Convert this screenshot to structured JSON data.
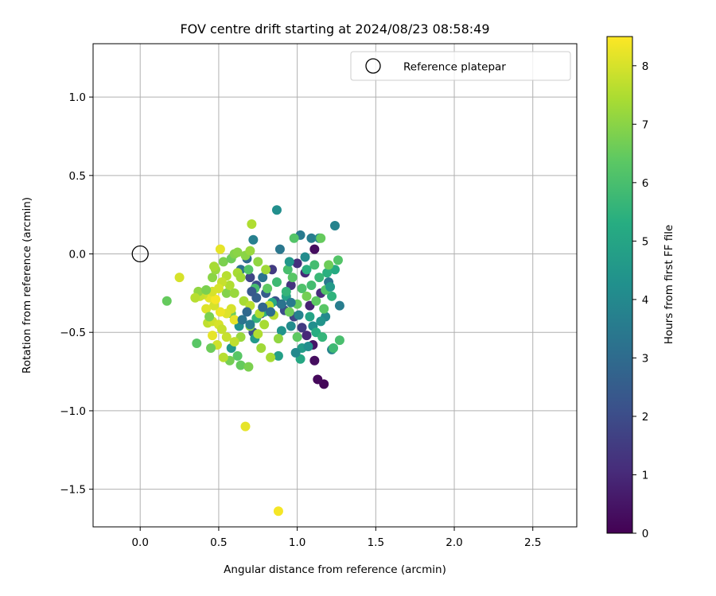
{
  "chart_data": {
    "type": "scatter",
    "title": "FOV centre drift starting at 2024/08/23 08:58:49",
    "xlabel": "Angular distance from reference (arcmin)",
    "ylabel": "Rotation from reference (arcmin)",
    "xlim": [
      -0.3,
      2.78
    ],
    "ylim": [
      -1.74,
      1.34
    ],
    "xticks": [
      0.0,
      0.5,
      1.0,
      1.5,
      2.0,
      2.5
    ],
    "xtick_labels": [
      "0.0",
      "0.5",
      "1.0",
      "1.5",
      "2.0",
      "2.5"
    ],
    "yticks": [
      1.0,
      0.5,
      0.0,
      -0.5,
      -1.0,
      -1.5
    ],
    "ytick_labels": [
      "1.0",
      "0.5",
      "0.0",
      "−0.5",
      "−1.0",
      "−1.5"
    ],
    "grid": true,
    "legend": {
      "placement": "top-right",
      "entries": [
        "Reference platepar"
      ]
    },
    "reference_point": {
      "x": 0.0,
      "y": 0.0
    },
    "colorbar": {
      "label": "Hours from first FF file",
      "range": [
        0,
        8.5
      ],
      "ticks": [
        0,
        1,
        2,
        3,
        4,
        5,
        6,
        7,
        8
      ],
      "tick_labels": [
        "0",
        "1",
        "2",
        "3",
        "4",
        "5",
        "6",
        "7",
        "8"
      ],
      "colormap": "viridis"
    },
    "points": [
      [
        0.88,
        -1.64,
        8.4
      ],
      [
        0.67,
        -1.1,
        8.2
      ],
      [
        1.17,
        -0.83,
        0.1
      ],
      [
        1.13,
        -0.8,
        0.2
      ],
      [
        1.11,
        -0.68,
        0.3
      ],
      [
        1.1,
        -0.58,
        0.5
      ],
      [
        1.06,
        -0.52,
        1.0
      ],
      [
        1.03,
        -0.47,
        1.5
      ],
      [
        0.98,
        -0.4,
        1.8
      ],
      [
        0.92,
        -0.36,
        2.0
      ],
      [
        0.86,
        -0.3,
        2.2
      ],
      [
        0.8,
        -0.25,
        2.5
      ],
      [
        0.74,
        -0.2,
        2.0
      ],
      [
        0.7,
        -0.15,
        1.8
      ],
      [
        0.84,
        -0.1,
        1.5
      ],
      [
        1.0,
        -0.06,
        1.2
      ],
      [
        1.11,
        0.03,
        0.3
      ],
      [
        1.05,
        -0.12,
        1.0
      ],
      [
        0.96,
        -0.2,
        1.3
      ],
      [
        0.9,
        -0.32,
        1.6
      ],
      [
        0.77,
        -0.38,
        1.9
      ],
      [
        0.72,
        -0.5,
        2.1
      ],
      [
        1.08,
        -0.33,
        0.8
      ],
      [
        1.15,
        -0.25,
        1.1
      ],
      [
        0.87,
        0.28,
        4.2
      ],
      [
        1.24,
        0.18,
        3.8
      ],
      [
        1.02,
        0.12,
        3.5
      ],
      [
        1.09,
        0.1,
        3.6
      ],
      [
        1.14,
        0.1,
        3.9
      ],
      [
        0.72,
        0.09,
        3.7
      ],
      [
        0.89,
        0.03,
        3.4
      ],
      [
        0.68,
        -0.03,
        3.0
      ],
      [
        0.64,
        -0.1,
        3.2
      ],
      [
        0.78,
        -0.15,
        3.3
      ],
      [
        1.2,
        -0.18,
        3.4
      ],
      [
        1.27,
        -0.33,
        3.6
      ],
      [
        1.22,
        -0.61,
        3.8
      ],
      [
        1.18,
        -0.4,
        4.0
      ],
      [
        1.1,
        -0.46,
        4.2
      ],
      [
        0.96,
        -0.46,
        4.1
      ],
      [
        0.9,
        -0.49,
        4.4
      ],
      [
        0.63,
        -0.46,
        4.3
      ],
      [
        0.58,
        -0.6,
        4.5
      ],
      [
        0.73,
        -0.54,
        4.6
      ],
      [
        0.88,
        -0.65,
        4.8
      ],
      [
        1.03,
        -0.6,
        4.7
      ],
      [
        1.02,
        -0.67,
        5.1
      ],
      [
        1.08,
        -0.4,
        5.0
      ],
      [
        1.12,
        -0.5,
        5.3
      ],
      [
        1.16,
        -0.53,
        5.6
      ],
      [
        1.23,
        -0.6,
        5.8
      ],
      [
        1.27,
        -0.55,
        6.0
      ],
      [
        1.22,
        -0.27,
        5.5
      ],
      [
        1.24,
        -0.1,
        5.2
      ],
      [
        1.19,
        -0.12,
        5.4
      ],
      [
        1.14,
        -0.15,
        5.7
      ],
      [
        1.09,
        -0.2,
        5.9
      ],
      [
        1.03,
        -0.22,
        6.1
      ],
      [
        0.97,
        -0.15,
        6.3
      ],
      [
        0.94,
        -0.1,
        6.0
      ],
      [
        0.98,
        0.1,
        6.2
      ],
      [
        1.15,
        0.1,
        6.5
      ],
      [
        1.26,
        -0.04,
        6.2
      ],
      [
        1.2,
        -0.07,
        6.6
      ],
      [
        1.17,
        -0.35,
        6.3
      ],
      [
        1.12,
        -0.3,
        6.4
      ],
      [
        1.06,
        -0.27,
        6.7
      ],
      [
        1.0,
        -0.32,
        6.5
      ],
      [
        0.95,
        -0.37,
        6.6
      ],
      [
        1.0,
        -0.53,
        6.4
      ],
      [
        0.93,
        -0.27,
        4.9
      ],
      [
        0.84,
        -0.31,
        5.2
      ],
      [
        0.79,
        -0.37,
        5.4
      ],
      [
        0.74,
        -0.41,
        5.6
      ],
      [
        0.62,
        -0.65,
        6.3
      ],
      [
        0.64,
        -0.71,
        6.5
      ],
      [
        0.69,
        -0.72,
        6.8
      ],
      [
        0.57,
        -0.68,
        6.7
      ],
      [
        0.58,
        -0.38,
        6.6
      ],
      [
        0.55,
        -0.25,
        6.9
      ],
      [
        0.53,
        -0.05,
        6.8
      ],
      [
        0.58,
        -0.03,
        6.6
      ],
      [
        0.6,
        0.0,
        6.9
      ],
      [
        0.67,
        -0.01,
        7.0
      ],
      [
        0.7,
        0.02,
        7.2
      ],
      [
        0.75,
        -0.05,
        7.1
      ],
      [
        0.8,
        -0.1,
        7.3
      ],
      [
        0.62,
        -0.12,
        7.4
      ],
      [
        0.57,
        -0.2,
        7.5
      ],
      [
        0.64,
        -0.15,
        7.3
      ],
      [
        0.6,
        -0.25,
        7.2
      ],
      [
        0.66,
        -0.3,
        7.4
      ],
      [
        0.7,
        -0.33,
        7.6
      ],
      [
        0.76,
        -0.38,
        7.5
      ],
      [
        0.82,
        -0.33,
        7.7
      ],
      [
        0.85,
        -0.39,
        7.6
      ],
      [
        0.79,
        -0.45,
        7.4
      ],
      [
        0.75,
        -0.51,
        7.5
      ],
      [
        0.77,
        -0.6,
        7.3
      ],
      [
        0.83,
        -0.66,
        7.4
      ],
      [
        0.88,
        -0.54,
        7.1
      ],
      [
        0.7,
        -0.46,
        7.0
      ],
      [
        0.64,
        -0.53,
        7.2
      ],
      [
        0.6,
        -0.56,
        7.7
      ],
      [
        0.55,
        -0.53,
        7.8
      ],
      [
        0.53,
        -0.66,
        7.6
      ],
      [
        0.49,
        -0.58,
        7.9
      ],
      [
        0.46,
        -0.52,
        8.2
      ],
      [
        0.43,
        -0.44,
        7.7
      ],
      [
        0.46,
        -0.43,
        7.9
      ],
      [
        0.5,
        -0.45,
        8.0
      ],
      [
        0.52,
        -0.48,
        7.8
      ],
      [
        0.58,
        -0.35,
        8.0
      ],
      [
        0.6,
        -0.42,
        8.2
      ],
      [
        0.55,
        -0.38,
        8.1
      ],
      [
        0.51,
        -0.37,
        8.3
      ],
      [
        0.47,
        -0.33,
        8.0
      ],
      [
        0.42,
        -0.35,
        8.1
      ],
      [
        0.44,
        -0.28,
        8.2
      ],
      [
        0.48,
        -0.29,
        8.4
      ],
      [
        0.46,
        -0.24,
        8.0
      ],
      [
        0.4,
        -0.26,
        7.9
      ],
      [
        0.38,
        -0.27,
        7.8
      ],
      [
        0.37,
        -0.24,
        7.1
      ],
      [
        0.42,
        -0.23,
        6.8
      ],
      [
        0.46,
        -0.15,
        7.0
      ],
      [
        0.48,
        -0.1,
        7.2
      ],
      [
        0.47,
        -0.08,
        7.4
      ],
      [
        0.55,
        -0.14,
        7.6
      ],
      [
        0.52,
        -0.18,
        7.8
      ],
      [
        0.5,
        -0.22,
        8.0
      ],
      [
        0.51,
        0.03,
        8.2
      ],
      [
        0.71,
        0.19,
        7.5
      ],
      [
        0.62,
        0.01,
        7.0
      ],
      [
        0.25,
        -0.15,
        8.0
      ],
      [
        0.17,
        -0.3,
        6.5
      ],
      [
        0.35,
        -0.28,
        7.6
      ],
      [
        0.36,
        -0.57,
        6.3
      ],
      [
        0.45,
        -0.6,
        6.6
      ],
      [
        0.44,
        -0.4,
        6.8
      ],
      [
        0.69,
        -0.1,
        6.2
      ],
      [
        0.73,
        -0.22,
        6.0
      ],
      [
        0.81,
        -0.22,
        6.4
      ],
      [
        0.87,
        -0.18,
        5.8
      ],
      [
        0.93,
        -0.24,
        5.6
      ],
      [
        1.06,
        -0.1,
        5.4
      ],
      [
        1.11,
        -0.07,
        5.9
      ],
      [
        1.18,
        -0.23,
        6.2
      ],
      [
        1.21,
        -0.21,
        4.6
      ],
      [
        1.15,
        -0.43,
        4.4
      ],
      [
        1.07,
        -0.59,
        4.2
      ],
      [
        0.99,
        -0.63,
        4.0
      ],
      [
        1.01,
        -0.39,
        3.8
      ],
      [
        0.96,
        -0.31,
        3.5
      ],
      [
        0.9,
        -0.32,
        3.3
      ],
      [
        0.83,
        -0.37,
        3.1
      ],
      [
        0.78,
        -0.34,
        2.8
      ],
      [
        0.74,
        -0.28,
        2.6
      ],
      [
        0.71,
        -0.24,
        2.4
      ],
      [
        0.68,
        -0.37,
        2.9
      ],
      [
        0.65,
        -0.42,
        3.3
      ],
      [
        0.7,
        -0.45,
        3.6
      ],
      [
        0.95,
        -0.05,
        4.5
      ],
      [
        1.05,
        -0.02,
        4.1
      ]
    ]
  }
}
